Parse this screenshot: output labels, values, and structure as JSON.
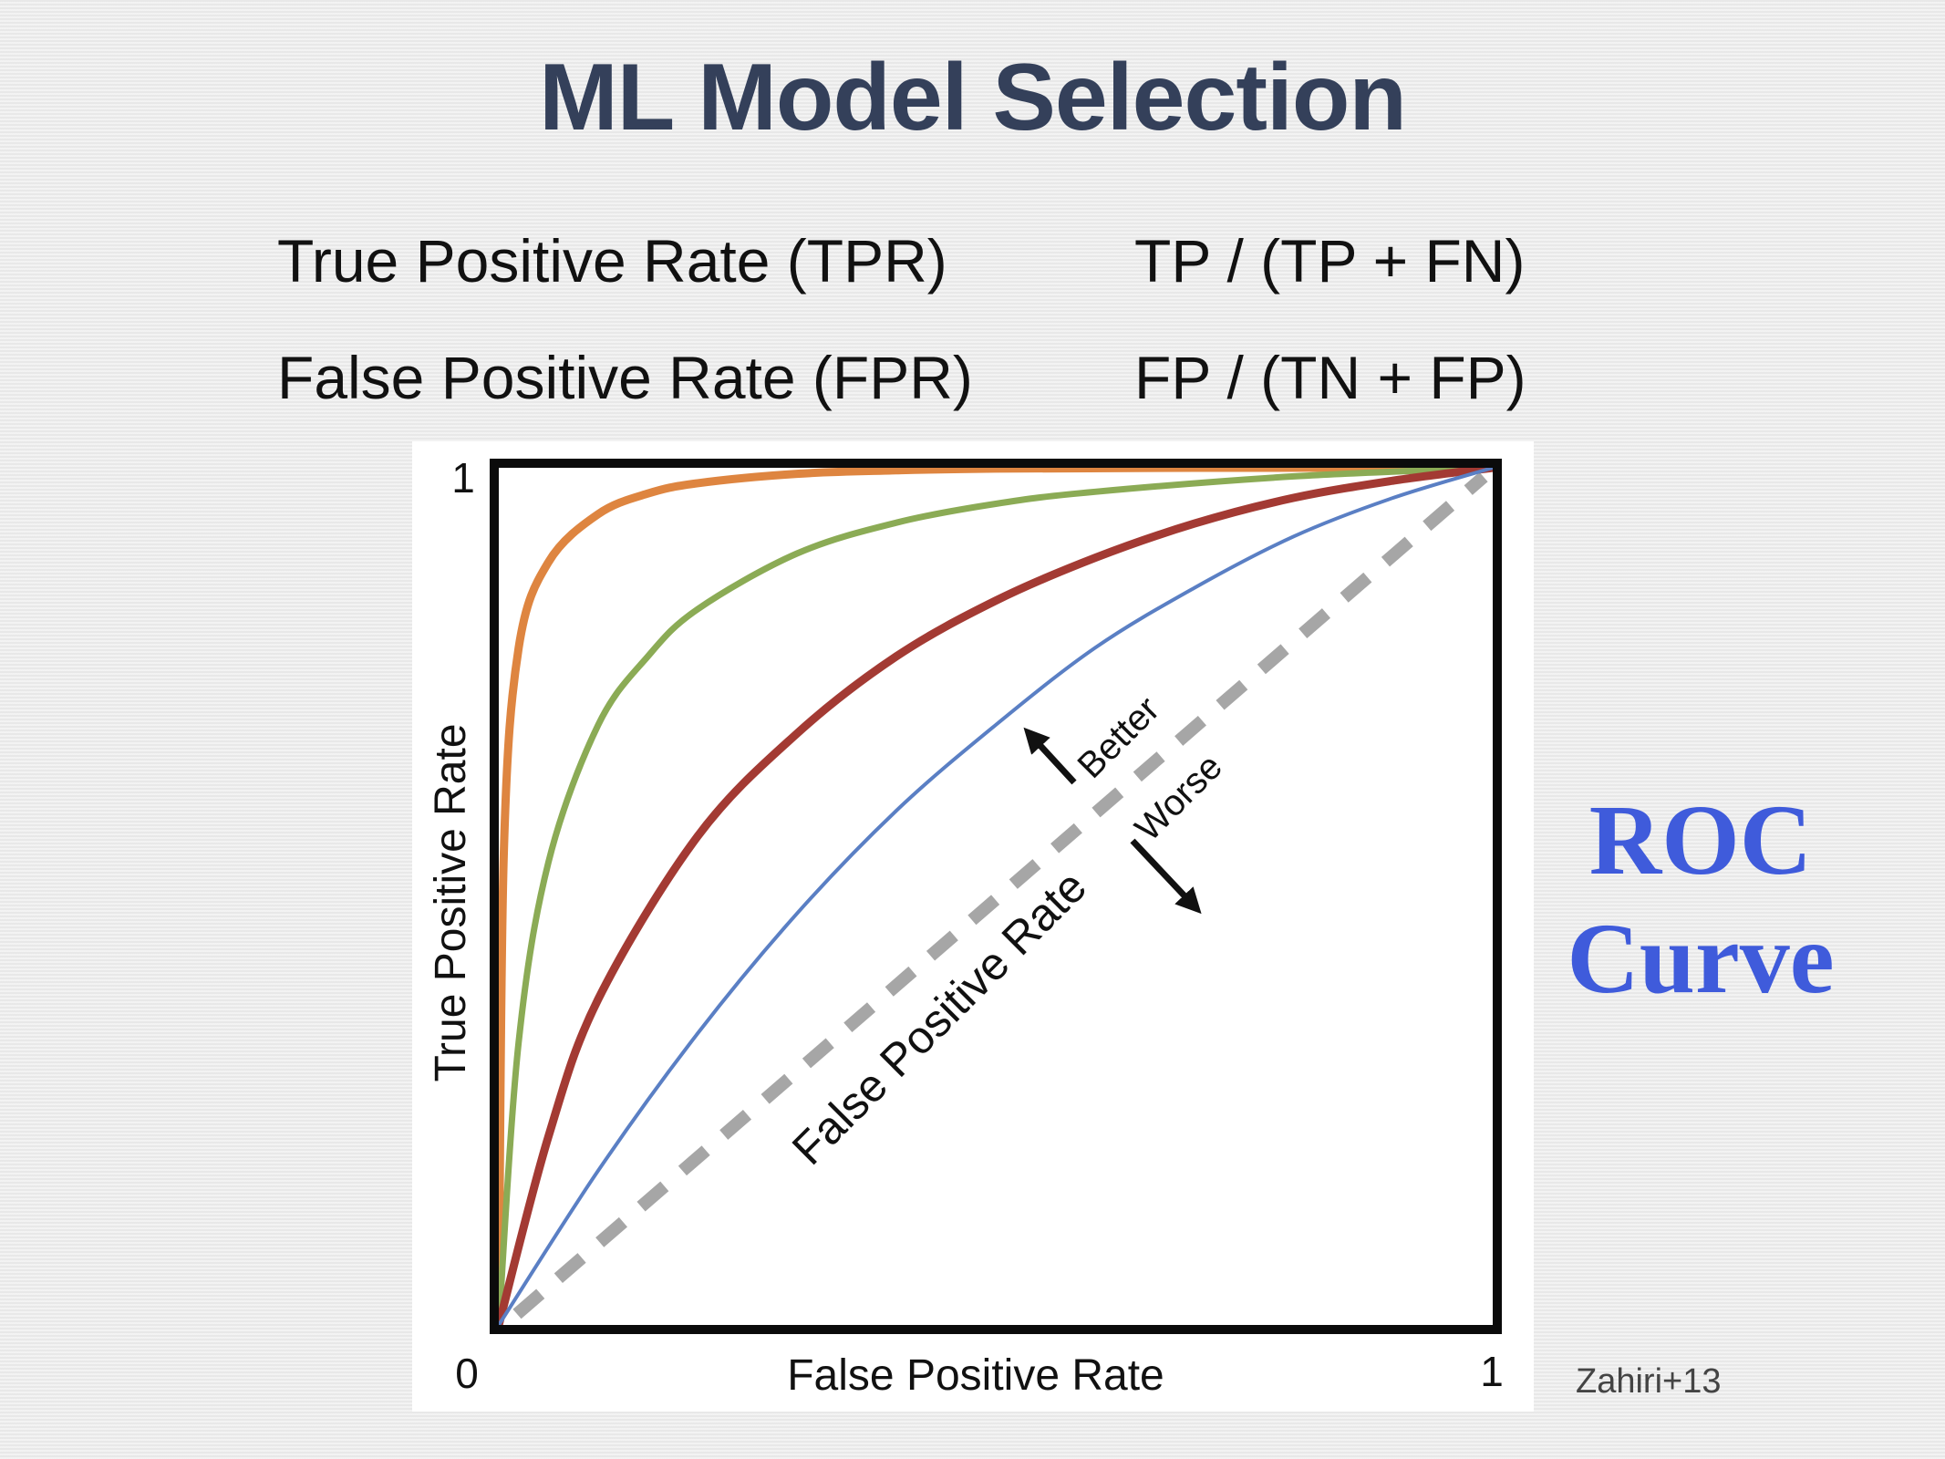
{
  "slide": {
    "title": "ML Model Selection",
    "definitions": [
      {
        "term": "True Positive Rate (TPR)",
        "formula": "TP / (TP + FN)"
      },
      {
        "term": "False Positive Rate (FPR)",
        "formula": "FP / (TN + FP)"
      }
    ],
    "side_label_line1": "ROC",
    "side_label_line2": "Curve",
    "credit": "Zahiri+13"
  },
  "chart_data": {
    "type": "line",
    "xlabel": "False Positive Rate",
    "ylabel": "True Positive Rate",
    "xlim": [
      0,
      1
    ],
    "ylim": [
      0,
      1
    ],
    "x_ticks": [
      "0",
      "1"
    ],
    "y_ticks": [
      "1"
    ],
    "grid": false,
    "legend": "none",
    "series": [
      {
        "color": "#de8540",
        "x": [
          0,
          0.005,
          0.02,
          0.05,
          0.1,
          0.15,
          0.2,
          0.3,
          0.4,
          0.5,
          0.7,
          1.0
        ],
        "y": [
          0,
          0.55,
          0.79,
          0.89,
          0.946,
          0.97,
          0.982,
          0.993,
          0.997,
          0.999,
          1.0,
          1.0
        ]
      },
      {
        "color": "#8bab55",
        "x": [
          0,
          0.02,
          0.05,
          0.1,
          0.15,
          0.2,
          0.3,
          0.4,
          0.5,
          0.6,
          0.8,
          1.0
        ],
        "y": [
          0,
          0.33,
          0.54,
          0.7,
          0.78,
          0.835,
          0.9,
          0.936,
          0.958,
          0.972,
          0.99,
          1.0
        ]
      },
      {
        "color": "#a33a33",
        "x": [
          0,
          0.05,
          0.1,
          0.2,
          0.3,
          0.4,
          0.5,
          0.6,
          0.7,
          0.8,
          0.9,
          1.0
        ],
        "y": [
          0,
          0.22,
          0.38,
          0.57,
          0.69,
          0.78,
          0.845,
          0.895,
          0.935,
          0.965,
          0.985,
          1.0
        ]
      },
      {
        "color": "#5a7fc4",
        "x": [
          0,
          0.1,
          0.2,
          0.3,
          0.4,
          0.5,
          0.6,
          0.7,
          0.8,
          0.9,
          1.0
        ],
        "y": [
          0,
          0.18,
          0.34,
          0.48,
          0.6,
          0.7,
          0.79,
          0.86,
          0.92,
          0.965,
          1.0
        ]
      }
    ],
    "diagonal": {
      "x": [
        0,
        1
      ],
      "y": [
        0,
        1
      ],
      "color": "#a6a6a6",
      "style": "dashed"
    },
    "annotations": [
      {
        "text": "Better",
        "arrow": "up-left"
      },
      {
        "text": "Worse",
        "arrow": "down-right"
      },
      {
        "text": "False Positive Rate",
        "along": "diagonal"
      }
    ]
  }
}
